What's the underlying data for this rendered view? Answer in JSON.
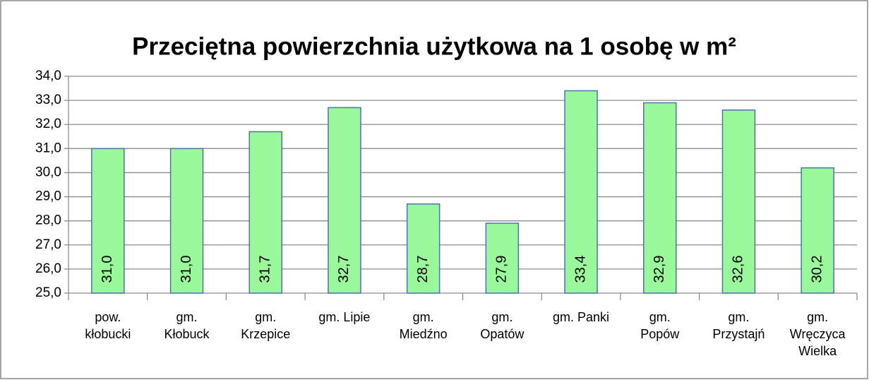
{
  "chart_data": {
    "type": "bar",
    "title": "Przeciętna powierzchnia użytkowa na 1 osobę w m²",
    "categories": [
      "pow.\nkłobucki",
      "gm.\nKłobuck",
      "gm.\nKrzepice",
      "gm. Lipie",
      "gm.\nMiedźno",
      "gm.\nOpatów",
      "gm. Panki",
      "gm.\nPopów",
      "gm.\nPrzystajń",
      "gm.\nWręczyca\nWielka"
    ],
    "values": [
      31.0,
      31.0,
      31.7,
      32.7,
      28.7,
      27.9,
      33.4,
      32.9,
      32.6,
      30.2
    ],
    "value_labels": [
      "31,0",
      "31,0",
      "31,7",
      "32,7",
      "28,7",
      "27,9",
      "33,4",
      "32,9",
      "32,6",
      "30,2"
    ],
    "color": "#99f899",
    "ylim": [
      25,
      34
    ],
    "yticks": [
      {
        "value": 25,
        "label": "25,0"
      },
      {
        "value": 26,
        "label": "26,0"
      },
      {
        "value": 27,
        "label": "27,0"
      },
      {
        "value": 28,
        "label": "28,0"
      },
      {
        "value": 29,
        "label": "29,0"
      },
      {
        "value": 30,
        "label": "30,0"
      },
      {
        "value": 31,
        "label": "31,0"
      },
      {
        "value": 32,
        "label": "32,0"
      },
      {
        "value": 33,
        "label": "33,0"
      },
      {
        "value": 34,
        "label": "34,0"
      }
    ],
    "grid": true
  }
}
